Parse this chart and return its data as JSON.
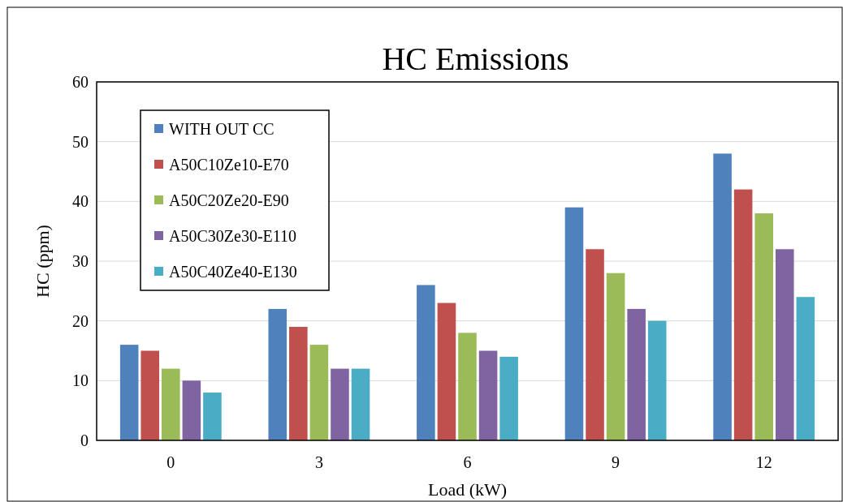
{
  "chart_data": {
    "type": "bar",
    "title": "HC Emissions",
    "xlabel": "Load (kW)",
    "ylabel": "HC (ppm)",
    "categories": [
      "0",
      "3",
      "6",
      "9",
      "12"
    ],
    "series": [
      {
        "name": "WITH OUT CC",
        "color": "#4f81bd",
        "values": [
          16,
          22,
          26,
          39,
          48
        ]
      },
      {
        "name": "A50C10Ze10-E70",
        "color": "#c0504d",
        "values": [
          15,
          19,
          23,
          32,
          42
        ]
      },
      {
        "name": "A50C20Ze20-E90",
        "color": "#9bbb59",
        "values": [
          12,
          16,
          18,
          28,
          38
        ]
      },
      {
        "name": "A50C30Ze30-E110",
        "color": "#8064a2",
        "values": [
          10,
          12,
          15,
          22,
          32
        ]
      },
      {
        "name": "A50C40Ze40-E130",
        "color": "#4bacc6",
        "values": [
          8,
          12,
          14,
          20,
          24
        ]
      }
    ],
    "ylim": [
      0,
      60
    ],
    "yticks": [
      0,
      10,
      20,
      30,
      40,
      50,
      60
    ],
    "grid": "y",
    "legend": "top left"
  }
}
